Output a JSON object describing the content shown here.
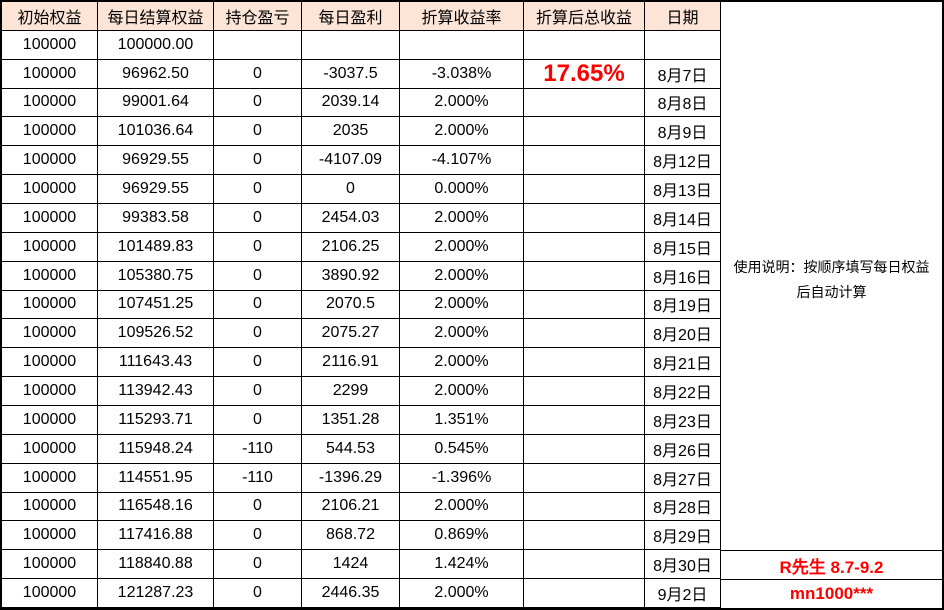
{
  "table": {
    "columns": [
      "初始权益",
      "每日结算权益",
      "持仓盈亏",
      "每日盈利",
      "折算收益率",
      "折算后总收益",
      "日期"
    ],
    "rows": [
      [
        "100000",
        "100000.00",
        "",
        "",
        "",
        "",
        ""
      ],
      [
        "100000",
        "96962.50",
        "0",
        "-3037.5",
        "-3.038%",
        "17.65%",
        "8月7日"
      ],
      [
        "100000",
        "99001.64",
        "0",
        "2039.14",
        "2.000%",
        "",
        "8月8日"
      ],
      [
        "100000",
        "101036.64",
        "0",
        "2035",
        "2.000%",
        "",
        "8月9日"
      ],
      [
        "100000",
        "96929.55",
        "0",
        "-4107.09",
        "-4.107%",
        "",
        "8月12日"
      ],
      [
        "100000",
        "96929.55",
        "0",
        "0",
        "0.000%",
        "",
        "8月13日"
      ],
      [
        "100000",
        "99383.58",
        "0",
        "2454.03",
        "2.000%",
        "",
        "8月14日"
      ],
      [
        "100000",
        "101489.83",
        "0",
        "2106.25",
        "2.000%",
        "",
        "8月15日"
      ],
      [
        "100000",
        "105380.75",
        "0",
        "3890.92",
        "2.000%",
        "",
        "8月16日"
      ],
      [
        "100000",
        "107451.25",
        "0",
        "2070.5",
        "2.000%",
        "",
        "8月19日"
      ],
      [
        "100000",
        "109526.52",
        "0",
        "2075.27",
        "2.000%",
        "",
        "8月20日"
      ],
      [
        "100000",
        "111643.43",
        "0",
        "2116.91",
        "2.000%",
        "",
        "8月21日"
      ],
      [
        "100000",
        "113942.43",
        "0",
        "2299",
        "2.000%",
        "",
        "8月22日"
      ],
      [
        "100000",
        "115293.71",
        "0",
        "1351.28",
        "1.351%",
        "",
        "8月23日"
      ],
      [
        "100000",
        "115948.24",
        "-110",
        "544.53",
        "0.545%",
        "",
        "8月26日"
      ],
      [
        "100000",
        "114551.95",
        "-110",
        "-1396.29",
        "-1.396%",
        "",
        "8月27日"
      ],
      [
        "100000",
        "116548.16",
        "0",
        "2106.21",
        "2.000%",
        "",
        "8月28日"
      ],
      [
        "100000",
        "117416.88",
        "0",
        "868.72",
        "0.869%",
        "",
        "8月29日"
      ],
      [
        "100000",
        "118840.88",
        "0",
        "1424",
        "1.424%",
        "",
        "8月30日"
      ],
      [
        "100000",
        "121287.23",
        "0",
        "2446.35",
        "2.000%",
        "",
        "9月2日"
      ]
    ],
    "highlight": {
      "row": 1,
      "col": 5,
      "value": "17.65%"
    }
  },
  "side_panel": {
    "note_line1": "使用说明：按顺序填写每日权益",
    "note_line2": "后自动计算",
    "annotation_row_aug30": "R先生 8.7-9.2",
    "annotation_row_sep2": "mn1000***"
  },
  "colors": {
    "header_fill": "#FCE4D6",
    "grid_line": "#000000",
    "highlight_red": "#FF0000",
    "annotation_red": "#FF0000"
  }
}
